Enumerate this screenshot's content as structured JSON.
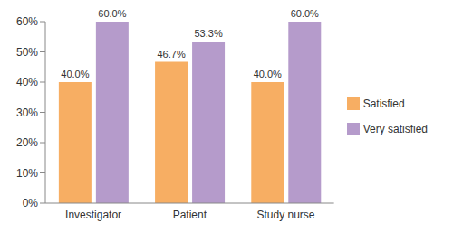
{
  "chart_data": {
    "type": "bar",
    "categories": [
      "Investigator",
      "Patient",
      "Study nurse"
    ],
    "series": [
      {
        "name": "Satisfied",
        "color": "#F7AE63",
        "values": [
          40.0,
          46.7,
          40.0
        ],
        "value_labels": [
          "40.0%",
          "46.7%",
          "40.0%"
        ]
      },
      {
        "name": "Very satisfied",
        "color": "#B59BCB",
        "values": [
          60.0,
          53.3,
          60.0
        ],
        "value_labels": [
          "60.0%",
          "53.3%",
          "60.0%"
        ]
      }
    ],
    "ylim": [
      0,
      60
    ],
    "yticks": [
      {
        "value": 0,
        "label": "0%"
      },
      {
        "value": 10,
        "label": "10%"
      },
      {
        "value": 20,
        "label": "20%"
      },
      {
        "value": 30,
        "label": "30%"
      },
      {
        "value": 40,
        "label": "40%"
      },
      {
        "value": 50,
        "label": "50%"
      },
      {
        "value": 60,
        "label": "60%"
      }
    ],
    "grid": false,
    "legend": "right",
    "data_labels": true
  }
}
